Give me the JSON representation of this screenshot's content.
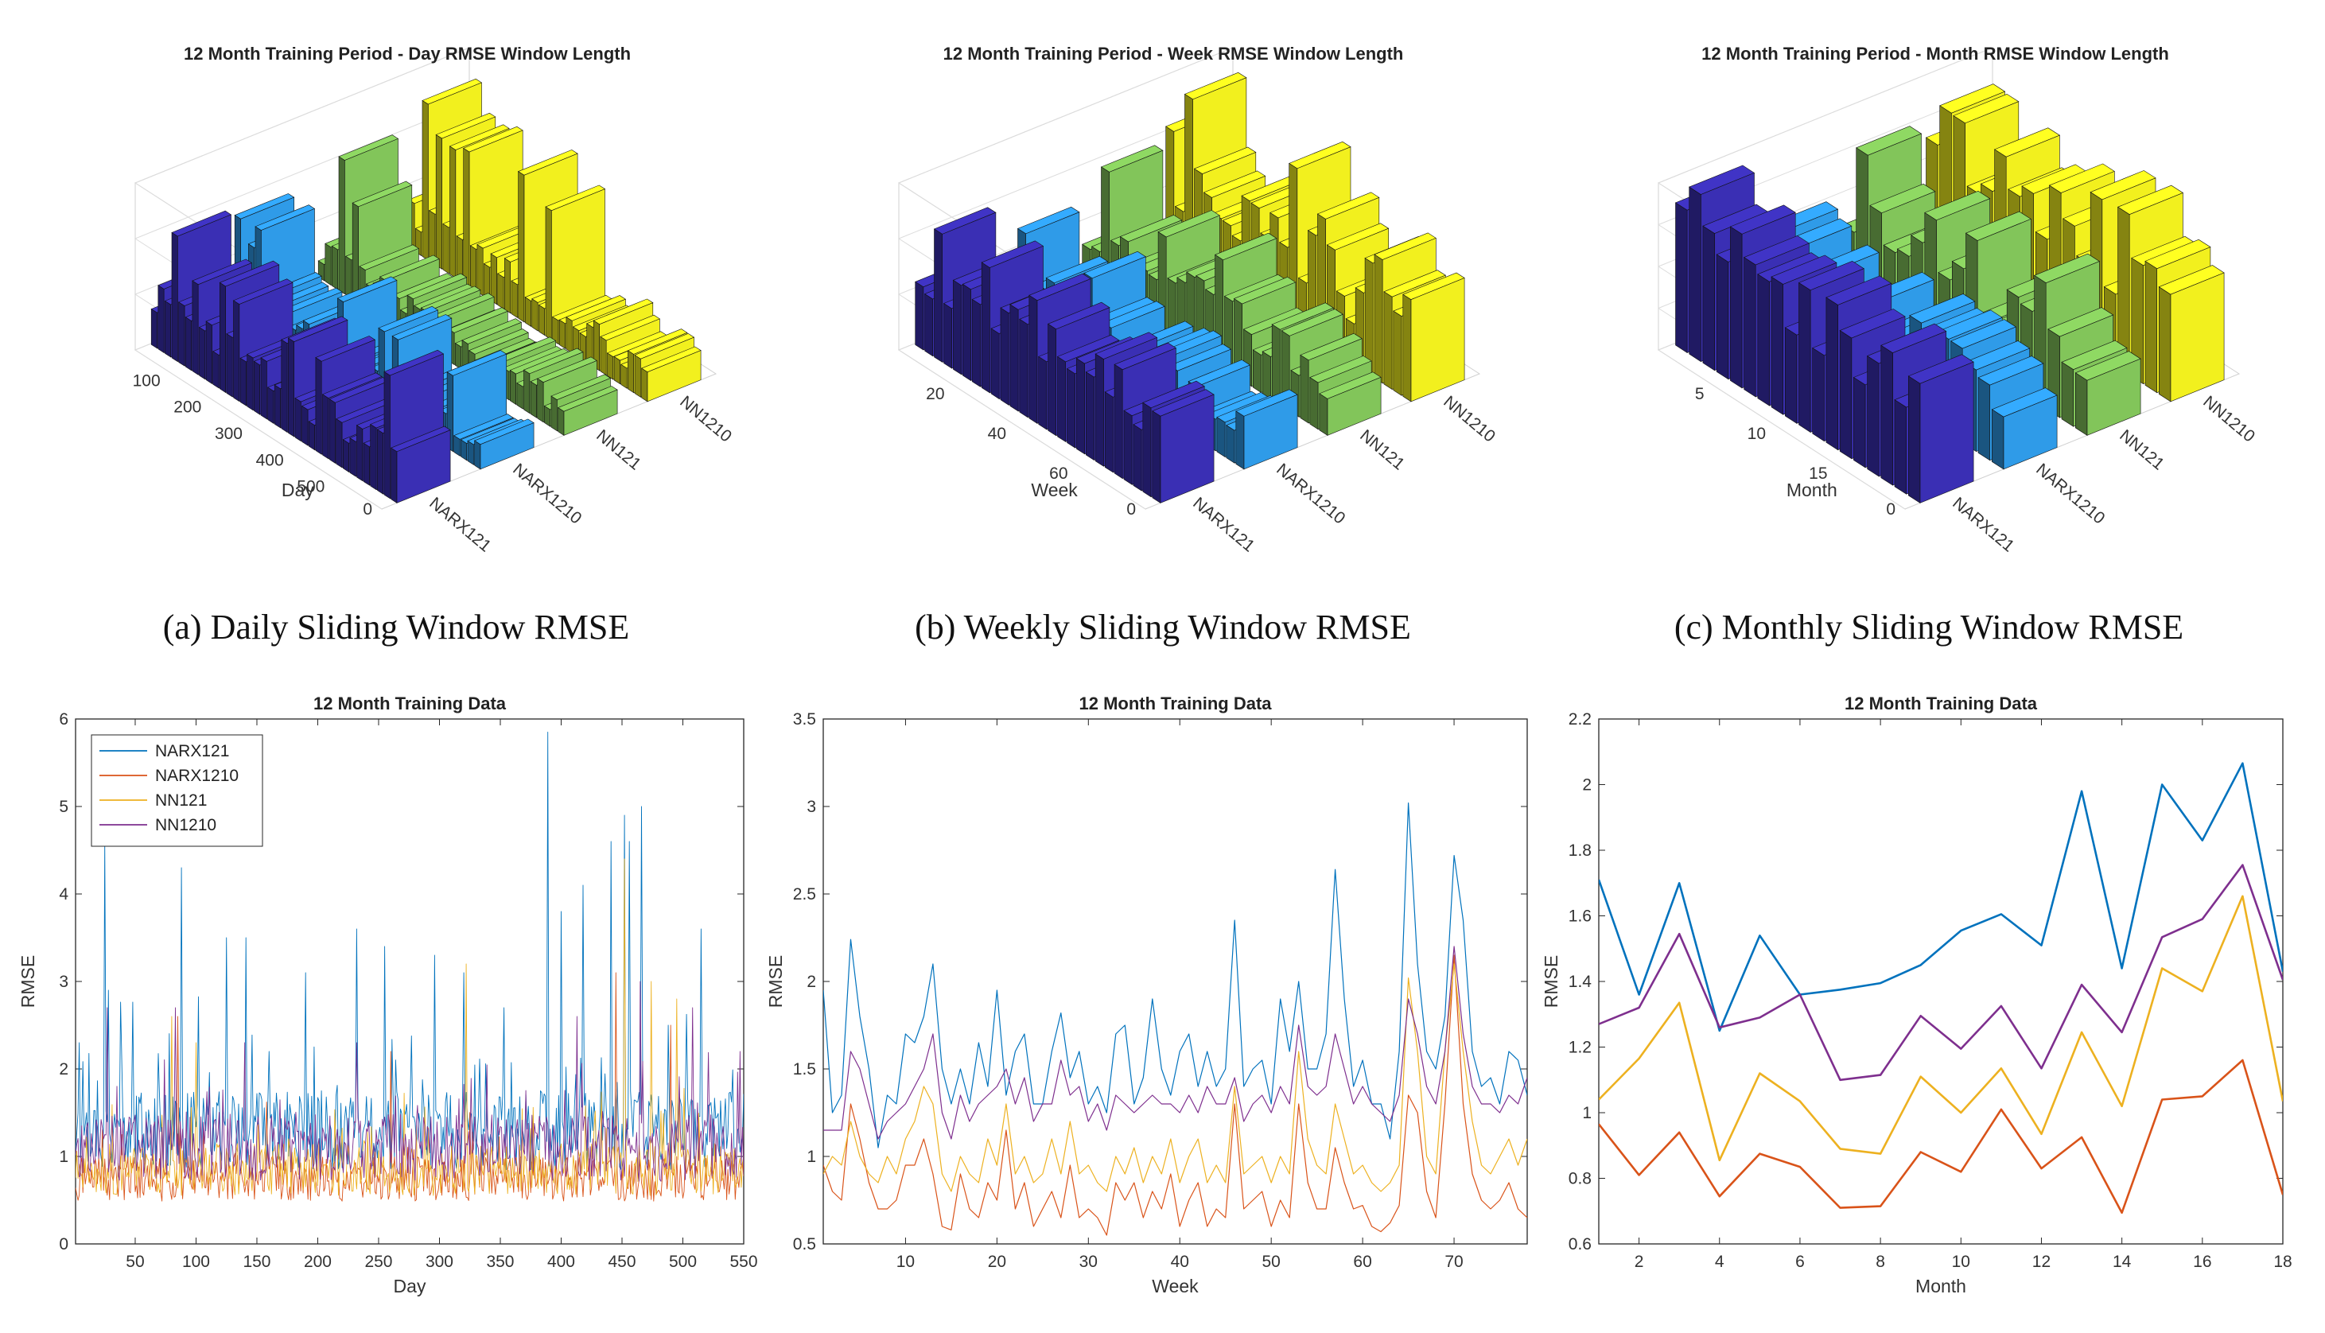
{
  "captions": {
    "a": "(a) Daily Sliding Window RMSE",
    "b": "(b) Weekly Sliding Window RMSE",
    "c": "(c) Monthly Sliding Window RMSE"
  },
  "colors": {
    "NARX121": "#0072BD",
    "NARX1210": "#D95319",
    "NN121": "#EDB120",
    "NN1210": "#7E2F8E",
    "bar_NARX121": "#3a2fb4",
    "bar_NARX1210": "#2f9be8",
    "bar_NN121": "#82c55a",
    "bar_NN1210": "#f2f01e"
  },
  "chart_data": [
    {
      "type": "bar3d",
      "title": "12 Month Training Period - Day RMSE Window Length",
      "xlabel": "Day",
      "ylabel": "RMSE",
      "zlim": [
        0,
        6
      ],
      "z_ticks": [
        "0",
        "2",
        "4",
        "6"
      ],
      "x_ticks": [
        "100",
        "200",
        "300",
        "400",
        "500"
      ],
      "series_labels": [
        "NARX121",
        "NARX1210",
        "NN121",
        "NN1210"
      ],
      "series_peak": [
        4.5,
        3.5,
        4.8,
        5.6
      ],
      "series_base": [
        1.6,
        0.9,
        1.0,
        1.3
      ]
    },
    {
      "type": "bar3d",
      "title": "12 Month Training Period - Week RMSE Window Length",
      "xlabel": "Week",
      "ylabel": "RMSE",
      "zlim": [
        0,
        3
      ],
      "z_ticks": [
        "0",
        "1",
        "2",
        "3"
      ],
      "x_ticks": [
        "20",
        "40",
        "60"
      ],
      "series_labels": [
        "NARX121",
        "NARX1210",
        "NN121",
        "NN1210"
      ],
      "series_peak": [
        2.3,
        1.7,
        2.2,
        2.9
      ],
      "series_base": [
        1.4,
        0.8,
        1.0,
        1.3
      ]
    },
    {
      "type": "bar3d",
      "title": "12 Month Training Period - Month RMSE Window Length",
      "xlabel": "Month",
      "ylabel": "RMSE",
      "zlim": [
        0,
        2
      ],
      "z_ticks": [
        "0",
        "0.5",
        "1",
        "1.5",
        "2"
      ],
      "x_ticks": [
        "5",
        "10",
        "15"
      ],
      "series_labels": [
        "NARX121",
        "NARX1210",
        "NN121",
        "NN1210"
      ],
      "series_peak": [
        2.06,
        1.16,
        1.66,
        1.76
      ],
      "series_base": [
        1.5,
        0.85,
        1.05,
        1.35
      ]
    },
    {
      "type": "line",
      "title": "12 Month Training Data",
      "xlabel": "Day",
      "ylabel": "RMSE",
      "xlim": [
        1,
        550
      ],
      "ylim": [
        0,
        6
      ],
      "x_ticks": [
        50,
        100,
        150,
        200,
        250,
        300,
        350,
        400,
        450,
        500,
        550
      ],
      "y_ticks": [
        0,
        1,
        2,
        3,
        4,
        5,
        6
      ],
      "legend": [
        "NARX121",
        "NARX1210",
        "NN121",
        "NN1210"
      ],
      "legend_location": "top-left",
      "n_points": 550,
      "series_level": [
        1.3,
        0.75,
        0.85,
        1.1
      ],
      "series_spikes": [
        [
          [
            4,
            2.3
          ],
          [
            25,
            4.6
          ],
          [
            28,
            2.9
          ],
          [
            39,
            2.1
          ],
          [
            88,
            4.3
          ],
          [
            125,
            3.5
          ],
          [
            141,
            3.5
          ],
          [
            160,
            2.2
          ],
          [
            190,
            3.1
          ],
          [
            232,
            3.6
          ],
          [
            255,
            3.4
          ],
          [
            296,
            3.3
          ],
          [
            320,
            3.1
          ],
          [
            353,
            2.7
          ],
          [
            389,
            5.85
          ],
          [
            400,
            3.8
          ],
          [
            418,
            4.1
          ],
          [
            441,
            4.6
          ],
          [
            452,
            4.9
          ],
          [
            456,
            4.6
          ],
          [
            466,
            5.0
          ],
          [
            488,
            2.5
          ],
          [
            515,
            3.6
          ]
        ],
        [
          [
            85,
            2.6
          ],
          [
            260,
            2.2
          ],
          [
            445,
            3.1
          ],
          [
            490,
            2.5
          ]
        ],
        [
          [
            80,
            2.6
          ],
          [
            100,
            2.3
          ],
          [
            322,
            3.2
          ],
          [
            452,
            4.4
          ],
          [
            474,
            3.0
          ],
          [
            495,
            2.8
          ]
        ],
        [
          [
            27,
            2.7
          ],
          [
            83,
            2.7
          ],
          [
            140,
            2.3
          ],
          [
            232,
            2.3
          ],
          [
            413,
            2.6
          ],
          [
            465,
            3.0
          ],
          [
            508,
            2.7
          ],
          [
            547,
            2.2
          ]
        ]
      ]
    },
    {
      "type": "line",
      "title": "12 Month Training Data",
      "xlabel": "Week",
      "ylabel": "RMSE",
      "xlim": [
        1,
        78
      ],
      "ylim": [
        0.5,
        3.5
      ],
      "x_ticks": [
        10,
        20,
        30,
        40,
        50,
        60,
        70
      ],
      "y_ticks": [
        0.5,
        1,
        1.5,
        2,
        2.5,
        3,
        3.5
      ],
      "series": [
        {
          "name": "NARX121",
          "y": [
            1.95,
            1.25,
            1.35,
            2.24,
            1.8,
            1.5,
            1.05,
            1.35,
            1.3,
            1.7,
            1.65,
            1.8,
            2.1,
            1.5,
            1.3,
            1.5,
            1.3,
            1.65,
            1.4,
            1.95,
            1.35,
            1.6,
            1.7,
            1.3,
            1.3,
            1.6,
            1.82,
            1.45,
            1.6,
            1.3,
            1.4,
            1.25,
            1.7,
            1.75,
            1.3,
            1.45,
            1.9,
            1.5,
            1.35,
            1.6,
            1.7,
            1.4,
            1.6,
            1.4,
            1.5,
            2.35,
            1.4,
            1.5,
            1.55,
            1.3,
            1.9,
            1.6,
            2.0,
            1.5,
            1.5,
            1.7,
            2.64,
            1.9,
            1.4,
            1.55,
            1.3,
            1.3,
            1.1,
            1.6,
            3.02,
            2.1,
            1.6,
            1.5,
            1.8,
            2.72,
            2.35,
            1.6,
            1.4,
            1.45,
            1.3,
            1.6,
            1.55,
            1.35
          ]
        },
        {
          "name": "NARX1210",
          "y": [
            0.95,
            0.8,
            0.75,
            1.3,
            1.1,
            0.85,
            0.7,
            0.7,
            0.75,
            0.95,
            0.95,
            1.1,
            0.9,
            0.6,
            0.58,
            0.9,
            0.7,
            0.65,
            0.85,
            0.75,
            1.15,
            0.7,
            0.85,
            0.6,
            0.7,
            0.8,
            0.65,
            0.95,
            0.65,
            0.7,
            0.65,
            0.55,
            0.85,
            0.75,
            0.85,
            0.65,
            0.8,
            0.7,
            0.9,
            0.6,
            0.75,
            0.85,
            0.6,
            0.7,
            0.65,
            1.3,
            0.7,
            0.75,
            0.8,
            0.6,
            0.75,
            0.65,
            1.3,
            0.85,
            0.7,
            0.7,
            1.05,
            0.85,
            0.7,
            0.72,
            0.6,
            0.57,
            0.62,
            0.72,
            1.35,
            1.25,
            0.8,
            0.65,
            1.3,
            2.15,
            1.3,
            0.9,
            0.75,
            0.7,
            0.75,
            0.85,
            0.7,
            0.65
          ]
        },
        {
          "name": "NN121",
          "y": [
            0.9,
            1.0,
            0.95,
            1.2,
            1.0,
            0.9,
            0.85,
            1.0,
            0.9,
            1.1,
            1.2,
            1.4,
            1.3,
            0.9,
            0.8,
            1.0,
            0.9,
            0.85,
            1.1,
            0.95,
            1.3,
            0.9,
            1.0,
            0.85,
            0.9,
            1.1,
            0.9,
            1.2,
            0.9,
            0.95,
            0.85,
            0.8,
            1.0,
            0.9,
            1.05,
            0.85,
            1.0,
            0.9,
            1.1,
            0.85,
            1.0,
            1.1,
            0.85,
            0.95,
            0.85,
            1.4,
            0.9,
            0.95,
            1.0,
            0.85,
            1.0,
            0.9,
            1.6,
            1.1,
            0.95,
            0.9,
            1.3,
            1.1,
            0.9,
            0.95,
            0.85,
            0.8,
            0.85,
            0.95,
            2.02,
            1.6,
            1.0,
            0.9,
            1.6,
            2.1,
            1.6,
            1.2,
            0.95,
            0.9,
            1.0,
            1.1,
            0.95,
            1.1
          ]
        },
        {
          "name": "NN1210",
          "y": [
            1.15,
            1.15,
            1.15,
            1.6,
            1.5,
            1.3,
            1.1,
            1.2,
            1.25,
            1.3,
            1.4,
            1.5,
            1.7,
            1.25,
            1.1,
            1.35,
            1.2,
            1.3,
            1.35,
            1.4,
            1.5,
            1.3,
            1.45,
            1.2,
            1.3,
            1.3,
            1.55,
            1.35,
            1.4,
            1.2,
            1.3,
            1.15,
            1.35,
            1.3,
            1.25,
            1.3,
            1.35,
            1.3,
            1.3,
            1.25,
            1.35,
            1.25,
            1.4,
            1.3,
            1.3,
            1.45,
            1.2,
            1.3,
            1.35,
            1.25,
            1.4,
            1.3,
            1.75,
            1.4,
            1.35,
            1.4,
            1.7,
            1.5,
            1.3,
            1.4,
            1.3,
            1.25,
            1.2,
            1.35,
            1.9,
            1.7,
            1.4,
            1.3,
            1.6,
            2.2,
            1.7,
            1.4,
            1.3,
            1.3,
            1.25,
            1.35,
            1.3,
            1.45
          ]
        }
      ]
    },
    {
      "type": "line",
      "title": "12 Month Training Data",
      "xlabel": "Month",
      "ylabel": "RMSE",
      "xlim": [
        1,
        18
      ],
      "ylim": [
        0.6,
        2.2
      ],
      "x_ticks": [
        2,
        4,
        6,
        8,
        10,
        12,
        14,
        16,
        18
      ],
      "y_ticks": [
        0.6,
        0.8,
        1,
        1.2,
        1.4,
        1.6,
        1.8,
        2,
        2.2
      ],
      "x": [
        1,
        2,
        3,
        4,
        5,
        6,
        7,
        8,
        9,
        10,
        11,
        12,
        13,
        14,
        15,
        16,
        17,
        18
      ],
      "series": [
        {
          "name": "NARX121",
          "y": [
            1.71,
            1.36,
            1.7,
            1.25,
            1.54,
            1.36,
            1.375,
            1.395,
            1.45,
            1.555,
            1.605,
            1.51,
            1.98,
            1.44,
            2.0,
            1.83,
            2.065,
            1.43
          ]
        },
        {
          "name": "NARX1210",
          "y": [
            0.965,
            0.81,
            0.94,
            0.745,
            0.875,
            0.835,
            0.71,
            0.715,
            0.88,
            0.82,
            1.01,
            0.83,
            0.925,
            0.695,
            1.04,
            1.05,
            1.16,
            0.75
          ]
        },
        {
          "name": "NN121",
          "y": [
            1.04,
            1.165,
            1.335,
            0.855,
            1.12,
            1.035,
            0.89,
            0.875,
            1.11,
            1.0,
            1.135,
            0.935,
            1.245,
            1.02,
            1.44,
            1.37,
            1.66,
            1.035
          ]
        },
        {
          "name": "NN1210",
          "y": [
            1.27,
            1.32,
            1.545,
            1.26,
            1.29,
            1.36,
            1.1,
            1.115,
            1.295,
            1.195,
            1.325,
            1.135,
            1.39,
            1.245,
            1.535,
            1.59,
            1.755,
            1.405
          ]
        }
      ]
    }
  ]
}
